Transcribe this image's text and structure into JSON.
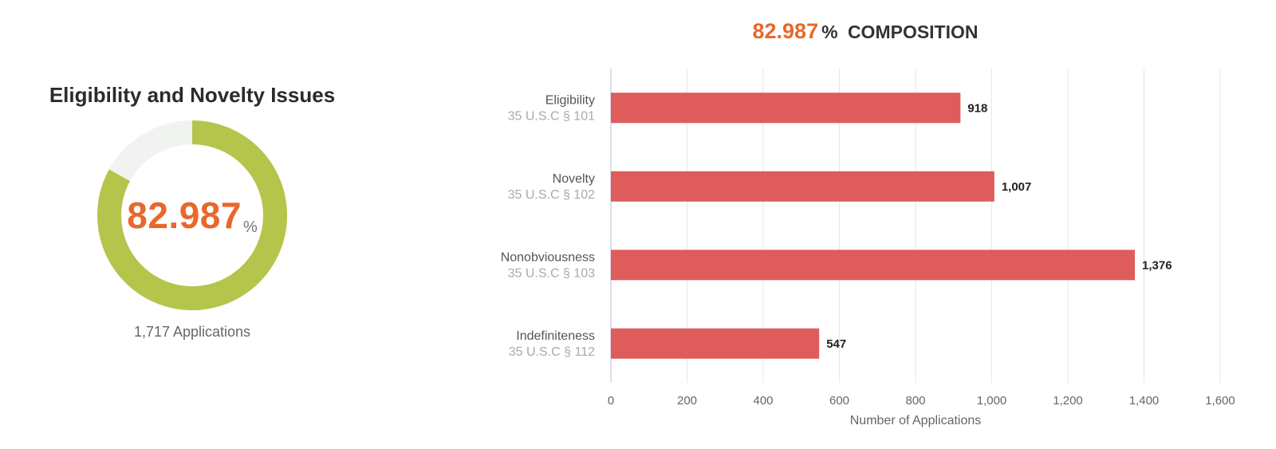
{
  "summary": {
    "title": "Eligibility and Novelty Issues",
    "percent": "82.987",
    "percent_sign": "%",
    "percent_value": 82.987,
    "applications_text": "1,717 Applications",
    "ring_color": "#b5c44a",
    "ring_bg_color": "#f1f3f0",
    "accent_color": "#e8682a"
  },
  "composition_title": {
    "number": "82.987",
    "sign": "%",
    "label": "COMPOSITION"
  },
  "chart_data": {
    "type": "bar",
    "orientation": "horizontal",
    "categories": [
      {
        "name": "Eligibility",
        "sub": "35 U.S.C § 101"
      },
      {
        "name": "Novelty",
        "sub": "35 U.S.C § 102"
      },
      {
        "name": "Nonobviousness",
        "sub": "35 U.S.C § 103"
      },
      {
        "name": "Indefiniteness",
        "sub": "35 U.S.C § 112"
      }
    ],
    "values": [
      918,
      1007,
      1376,
      547
    ],
    "value_labels": [
      "918",
      "1,007",
      "1,376",
      "547"
    ],
    "xlabel": "Number of Applications",
    "xlim": [
      0,
      1600
    ],
    "x_ticks": [
      0,
      200,
      400,
      600,
      800,
      1000,
      1200,
      1400,
      1600
    ],
    "x_tick_labels": [
      "0",
      "200",
      "400",
      "600",
      "800",
      "1,000",
      "1,200",
      "1,400",
      "1,600"
    ],
    "grid": true,
    "bar_color": "#df5c5c"
  }
}
